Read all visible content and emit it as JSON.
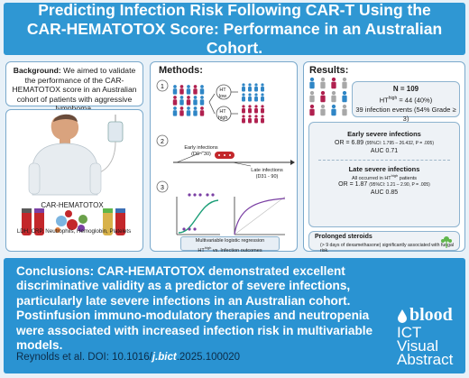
{
  "title": "Predicting Infection Risk Following CAR-T Using the CAR-HEMATOTOX Score: Performance in an Australian Cohort.",
  "background": {
    "label": "Background:",
    "text": "We aimed to validate the performance of the CAR-HEMATOTOX score in an Australian cohort of patients with aggressive lymphoma."
  },
  "patient_panel": {
    "label": "CAR-HEMATOTOX",
    "labs": "LDH, CRP, Neutrophils, Hemoglobin, Platelets"
  },
  "methods": {
    "heading": "Methods:",
    "steps": [
      "1",
      "2",
      "3"
    ],
    "ht_low": "HT low",
    "ht_high": "HT high",
    "early_title": "Early infections",
    "early_range": "(D0 - 30)",
    "late_title": "Late infections",
    "late_range": "(D31 - 90)",
    "mv_line1": "Multivariable logistic regression",
    "mv_line2": "HT vs. Infection outcomes",
    "mv_sup": "high"
  },
  "results": {
    "heading": "Results:",
    "n": "N = 109",
    "hthigh_pre": "HT",
    "hthigh_sup": "high",
    "hthigh_post": "= 44 (40%)",
    "events": "39 infection events (54% Grade ≥ 3)",
    "early_h": "Early severe infections",
    "early_or": "OR = 6.89",
    "early_ci": "(95%CI: 1.795 – 26.432, P = .005)",
    "early_auc": "AUC 0.71",
    "late_h": "Late severe infections",
    "late_sub_pre": "All occurred in HT",
    "late_sub_sup": "high",
    "late_sub_post": "patients",
    "late_or": "OR = 1.87",
    "late_ci": "(95%CI: 1.21 – 2.90, P = .005)",
    "late_auc": "AUC 0.85",
    "steroid_h": "Prolonged steroids",
    "steroid_sub": "(> 9 days of dexamethasone) significantly associated with fungal risk."
  },
  "conclusions": {
    "label": "Conclusions:",
    "text": "CAR-HEMATOTOX demonstrated excellent discriminative validity as a predictor of severe infections, particularly late severe infections in an Australian cohort. Postinfusion immuno-modulatory therapies and neutropenia were associated with increased infection risk in multivariable models.",
    "cite_pre": "Reynolds et al. DOI: 10.1016/",
    "cite_link": "j.bict",
    "cite_post": ".2025.100020"
  },
  "logo": {
    "brand": "blood",
    "line1": "ICT",
    "line2": "Visual",
    "line3": "Abstract"
  },
  "colors": {
    "banner": "#2f97d3",
    "person_low": "#2f86c6",
    "person_high": "#b0204f",
    "person_gray": "#a8a8a8"
  }
}
